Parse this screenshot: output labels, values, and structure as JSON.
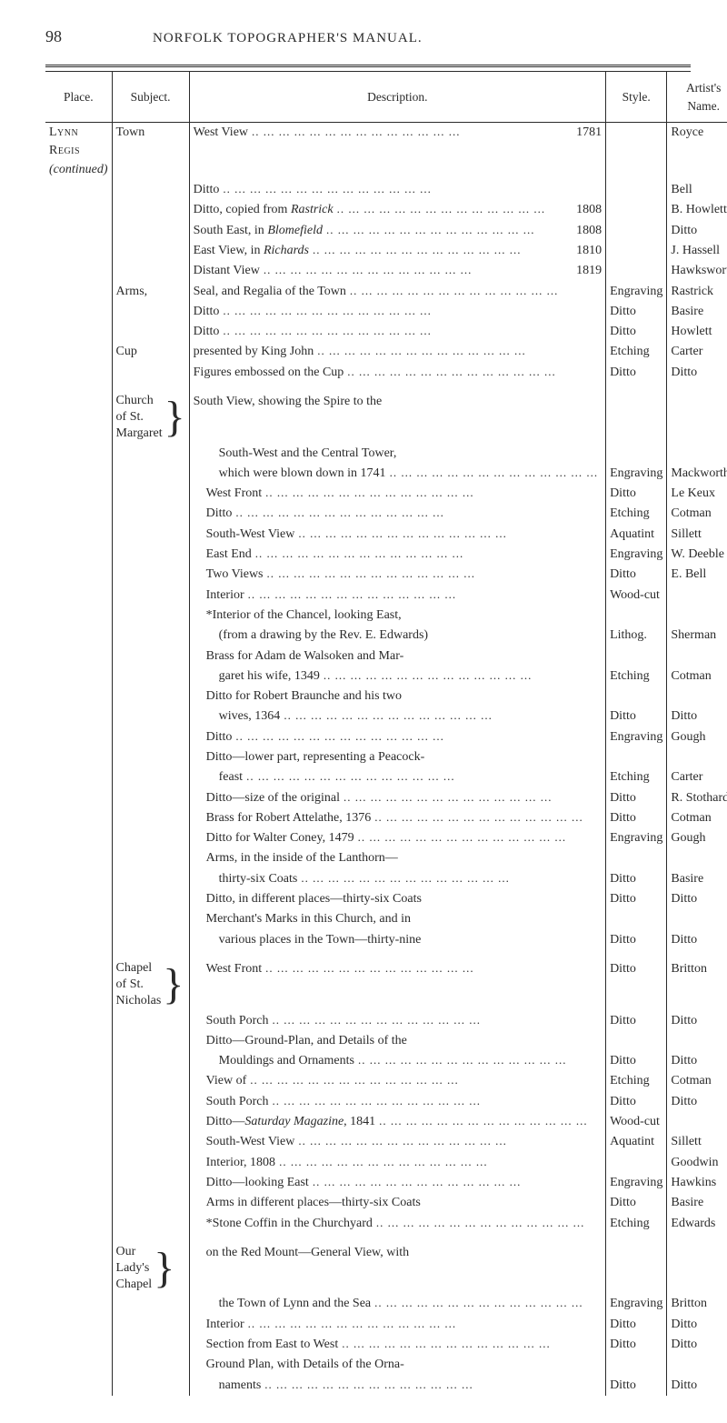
{
  "pageNumber": "98",
  "runningHead": "NORFOLK TOPOGRAPHER'S MANUAL.",
  "headers": {
    "place": "Place.",
    "subject": "Subject.",
    "description": "Description.",
    "style": "Style.",
    "artist": "Artist's Name."
  },
  "place": {
    "name": "Lynn Regis",
    "note": "(continued)"
  },
  "subjects": {
    "town": "Town",
    "arms": "Arms,",
    "cup": "Cup",
    "church": "Church",
    "ofSt": "of St.",
    "margaret": "Margaret",
    "chapel": "Chapel",
    "ofSt2": "of St.",
    "nicholas": "Nicholas",
    "our": "Our",
    "ladys": "Lady's",
    "chapel2": "Chapel"
  },
  "rows": [
    {
      "desc": "West View",
      "year": "1781",
      "style": "",
      "artist": "Royce"
    },
    {
      "desc": "Ditto",
      "style": "",
      "artist": "Bell"
    },
    {
      "descHtml": "Ditto, copied from <i>Rastrick</i>",
      "year": "1808",
      "artist": "B. Howlett"
    },
    {
      "descHtml": "South East, in <i>Blomefield</i>",
      "year": "1808",
      "artist": "Ditto"
    },
    {
      "descHtml": "East View, in <i>Richards</i>",
      "year": "1810",
      "artist": "J. Hassell"
    },
    {
      "desc": "Distant View",
      "year": "1819",
      "artist": "Hawksworth"
    },
    {
      "subject": "arms",
      "desc": "Seal, and Regalia of the Town",
      "style": "Engraving",
      "artist": "Rastrick"
    },
    {
      "desc": "Ditto",
      "style": "Ditto",
      "artist": "Basire"
    },
    {
      "desc": "Ditto",
      "style": "Ditto",
      "artist": "Howlett"
    },
    {
      "subject": "cup",
      "desc": "presented by King John",
      "style": "Etching",
      "artist": "Carter"
    },
    {
      "desc": "Figures embossed on the Cup",
      "style": "Ditto",
      "artist": "Ditto"
    },
    {
      "spacer": true
    },
    {
      "subject": "church-block",
      "desc": "South View, showing the Spire to the",
      "nodots": true
    },
    {
      "indent": 2,
      "desc": "South-West and the Central Tower,",
      "nodots": true
    },
    {
      "indent": 2,
      "desc": "which were blown down in 1741",
      "style": "Engraving",
      "artist": "Mackworth"
    },
    {
      "indent": 1,
      "desc": "West Front",
      "style": "Ditto",
      "artist": "Le Keux"
    },
    {
      "indent": 1,
      "desc": "Ditto",
      "style": "Etching",
      "artist": "Cotman"
    },
    {
      "indent": 1,
      "desc": "South-West View",
      "style": "Aquatint",
      "artist": "Sillett"
    },
    {
      "indent": 1,
      "desc": "East End",
      "style": "Engraving",
      "artist": "W. Deeble"
    },
    {
      "indent": 1,
      "desc": "Two Views",
      "style": "Ditto",
      "artist": "E. Bell"
    },
    {
      "indent": 1,
      "desc": "Interior",
      "style": "Wood-cut",
      "artist": ""
    },
    {
      "indent": 1,
      "desc": "*Interior of the Chancel, looking East,",
      "nodots": true
    },
    {
      "indent": 2,
      "desc": "(from a drawing by the Rev. E. Edwards)",
      "nodots": true,
      "style": "Lithog.",
      "artist": "Sherman"
    },
    {
      "indent": 1,
      "desc": "Brass for Adam de Walsoken and Mar-",
      "nodots": true
    },
    {
      "indent": 2,
      "desc": "garet his wife, 1349",
      "style": "Etching",
      "artist": "Cotman"
    },
    {
      "indent": 1,
      "desc": "Ditto for Robert Braunche and his two",
      "nodots": true
    },
    {
      "indent": 2,
      "desc": "wives, 1364",
      "style": "Ditto",
      "artist": "Ditto"
    },
    {
      "indent": 1,
      "desc": "Ditto",
      "style": "Engraving",
      "artist": "Gough"
    },
    {
      "indent": 1,
      "desc": "Ditto—lower part, representing a Peacock-",
      "nodots": true
    },
    {
      "indent": 2,
      "desc": "feast",
      "style": "Etching",
      "artist": "Carter"
    },
    {
      "indent": 1,
      "desc": "Ditto—size of the original",
      "style": "Ditto",
      "artist": "R. Stothard"
    },
    {
      "indent": 1,
      "desc": "Brass for Robert Attelathe, 1376",
      "style": "Ditto",
      "artist": "Cotman"
    },
    {
      "indent": 1,
      "desc": "Ditto for Walter Coney, 1479",
      "style": "Engraving",
      "artist": "Gough"
    },
    {
      "indent": 1,
      "desc": "Arms, in the inside of the Lanthorn—",
      "nodots": true
    },
    {
      "indent": 2,
      "desc": "thirty-six Coats",
      "style": "Ditto",
      "artist": "Basire"
    },
    {
      "indent": 1,
      "desc": "Ditto, in different places—thirty-six Coats",
      "nodots": true,
      "style": "Ditto",
      "artist": "Ditto"
    },
    {
      "indent": 1,
      "desc": "Merchant's Marks in this Church, and in",
      "nodots": true
    },
    {
      "indent": 2,
      "desc": "various places in the Town—thirty-nine",
      "nodots": true,
      "style": "Ditto",
      "artist": "Ditto"
    },
    {
      "spacer": true
    },
    {
      "subject": "chapel-block",
      "indent": 1,
      "desc": "West Front",
      "style": "Ditto",
      "artist": "Britton"
    },
    {
      "indent": 1,
      "desc": "South Porch",
      "style": "Ditto",
      "artist": "Ditto"
    },
    {
      "indent": 1,
      "desc": "Ditto—Ground-Plan, and Details of the",
      "nodots": true
    },
    {
      "indent": 2,
      "desc": "Mouldings and Ornaments",
      "style": "Ditto",
      "artist": "Ditto"
    },
    {
      "indent": 1,
      "desc": "View of",
      "style": "Etching",
      "artist": "Cotman"
    },
    {
      "indent": 1,
      "desc": "South Porch",
      "style": "Ditto",
      "artist": "Ditto"
    },
    {
      "indent": 1,
      "descHtml": "Ditto—<i>Saturday Magazine</i>, 1841",
      "style": "Wood-cut",
      "artist": ""
    },
    {
      "indent": 1,
      "desc": "South-West View",
      "style": "Aquatint",
      "artist": "Sillett"
    },
    {
      "indent": 1,
      "desc": "Interior, 1808",
      "style": "",
      "artist": "Goodwin"
    },
    {
      "indent": 1,
      "desc": "Ditto—looking East",
      "style": "Engraving",
      "artist": "Hawkins"
    },
    {
      "indent": 1,
      "desc": "Arms in different places—thirty-six Coats",
      "nodots": true,
      "style": "Ditto",
      "artist": "Basire"
    },
    {
      "indent": 1,
      "desc": "*Stone Coffin in the Churchyard",
      "style": "Etching",
      "artist": "Edwards"
    },
    {
      "spacer": true
    },
    {
      "subject": "our-block",
      "indent": 1,
      "desc": "on the Red Mount—General View, with",
      "nodots": true
    },
    {
      "indent": 2,
      "desc": "the Town of Lynn and the Sea",
      "style": "Engraving",
      "artist": "Britton"
    },
    {
      "indent": 1,
      "desc": "Interior",
      "style": "Ditto",
      "artist": "Ditto"
    },
    {
      "indent": 1,
      "desc": "Section from East to West",
      "style": "Ditto",
      "artist": "Ditto"
    },
    {
      "indent": 1,
      "desc": "Ground Plan, with Details of the Orna-",
      "nodots": true
    },
    {
      "indent": 2,
      "desc": "naments",
      "style": "Ditto",
      "artist": "Ditto"
    }
  ]
}
